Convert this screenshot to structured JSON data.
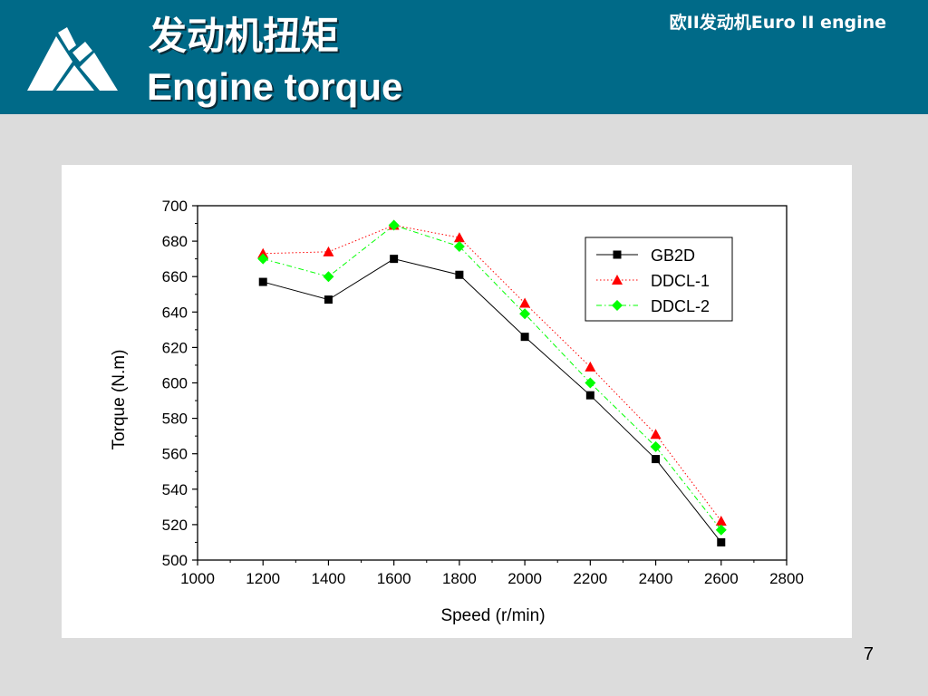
{
  "slide": {
    "title_cn": "发动机扭矩",
    "title_en": "Engine torque",
    "corner_label": "欧II发动机Euro II engine",
    "page_number": "7",
    "header_color": "#006a88"
  },
  "chart_data": {
    "type": "line",
    "xlabel": "Speed (r/min)",
    "ylabel": "Torque (N.m)",
    "xlim": [
      1000,
      2800
    ],
    "ylim": [
      500,
      700
    ],
    "xticks": [
      1000,
      1200,
      1400,
      1600,
      1800,
      2000,
      2200,
      2400,
      2600,
      2800
    ],
    "yticks": [
      500,
      520,
      540,
      560,
      580,
      600,
      620,
      640,
      660,
      680,
      700
    ],
    "x": [
      1200,
      1400,
      1600,
      1800,
      2000,
      2200,
      2400,
      2600
    ],
    "legend_position": "top-right",
    "grid": false,
    "series": [
      {
        "name": "GB2D",
        "values": [
          657,
          647,
          670,
          661,
          626,
          593,
          557,
          510
        ],
        "color": "#000000",
        "marker": "square",
        "line": "solid"
      },
      {
        "name": "DDCL-1",
        "values": [
          673,
          674,
          689,
          682,
          645,
          609,
          571,
          522
        ],
        "color": "#ff0000",
        "marker": "triangle",
        "line": "dotted"
      },
      {
        "name": "DDCL-2",
        "values": [
          670,
          660,
          689,
          677,
          639,
          600,
          564,
          517
        ],
        "color": "#00ff00",
        "marker": "diamond",
        "line": "dashdot"
      }
    ]
  }
}
